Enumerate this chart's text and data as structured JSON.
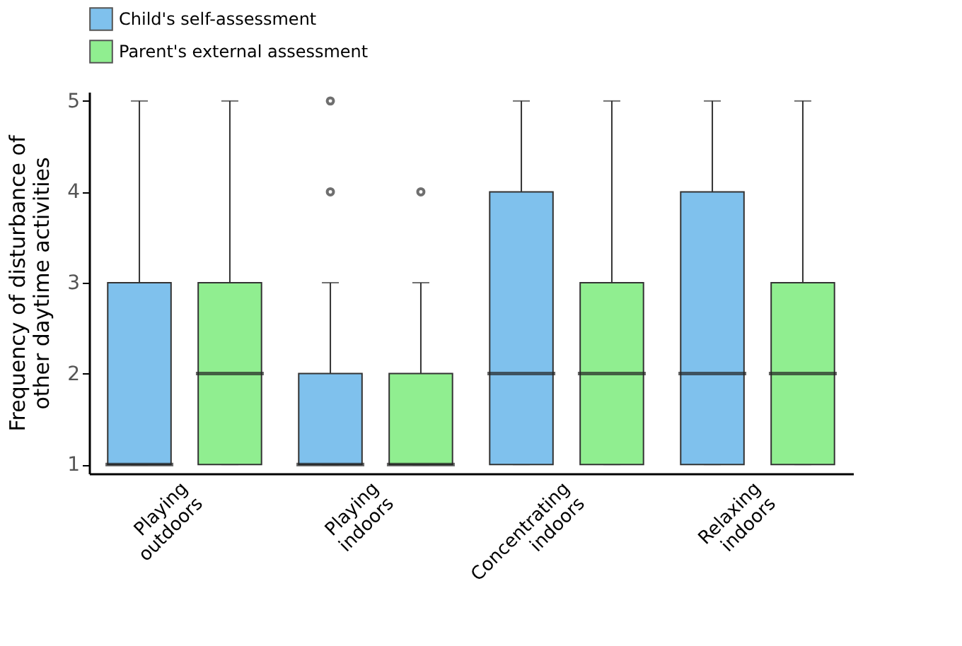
{
  "chart_data": {
    "type": "box",
    "ylabel": "Frequency of disturbance of other daytime activities",
    "categories": [
      "Playing outdoors",
      "Playing indoors",
      "Concentrating indoors",
      "Relaxing indoors"
    ],
    "series": [
      {
        "name": "Child's self-assessment",
        "color": "#7fc1ed",
        "boxes": [
          {
            "low": 1,
            "q1": 1,
            "median": 1,
            "q3": 3,
            "high": 5
          },
          {
            "low": 1,
            "q1": 1,
            "median": 1,
            "q3": 2,
            "high": 3,
            "outliers": [
              4,
              5
            ]
          },
          {
            "low": 1,
            "q1": 1,
            "median": 2,
            "q3": 4,
            "high": 5
          },
          {
            "low": 1,
            "q1": 1,
            "median": 2,
            "q3": 4,
            "high": 5
          }
        ]
      },
      {
        "name": "Parent's external assessment",
        "color": "#90ee90",
        "boxes": [
          {
            "low": 1,
            "q1": 1,
            "median": 2,
            "q3": 3,
            "high": 5
          },
          {
            "low": 1,
            "q1": 1,
            "median": 1,
            "q3": 2,
            "high": 3,
            "outliers": [
              4
            ]
          },
          {
            "low": 1,
            "q1": 1,
            "median": 2,
            "q3": 3,
            "high": 5
          },
          {
            "low": 1,
            "q1": 1,
            "median": 2,
            "q3": 3,
            "high": 5
          }
        ]
      }
    ],
    "ylim": [
      0.9,
      5.1
    ],
    "yticks": [
      1,
      2,
      3,
      4,
      5
    ],
    "grid": false,
    "legend": "top"
  }
}
